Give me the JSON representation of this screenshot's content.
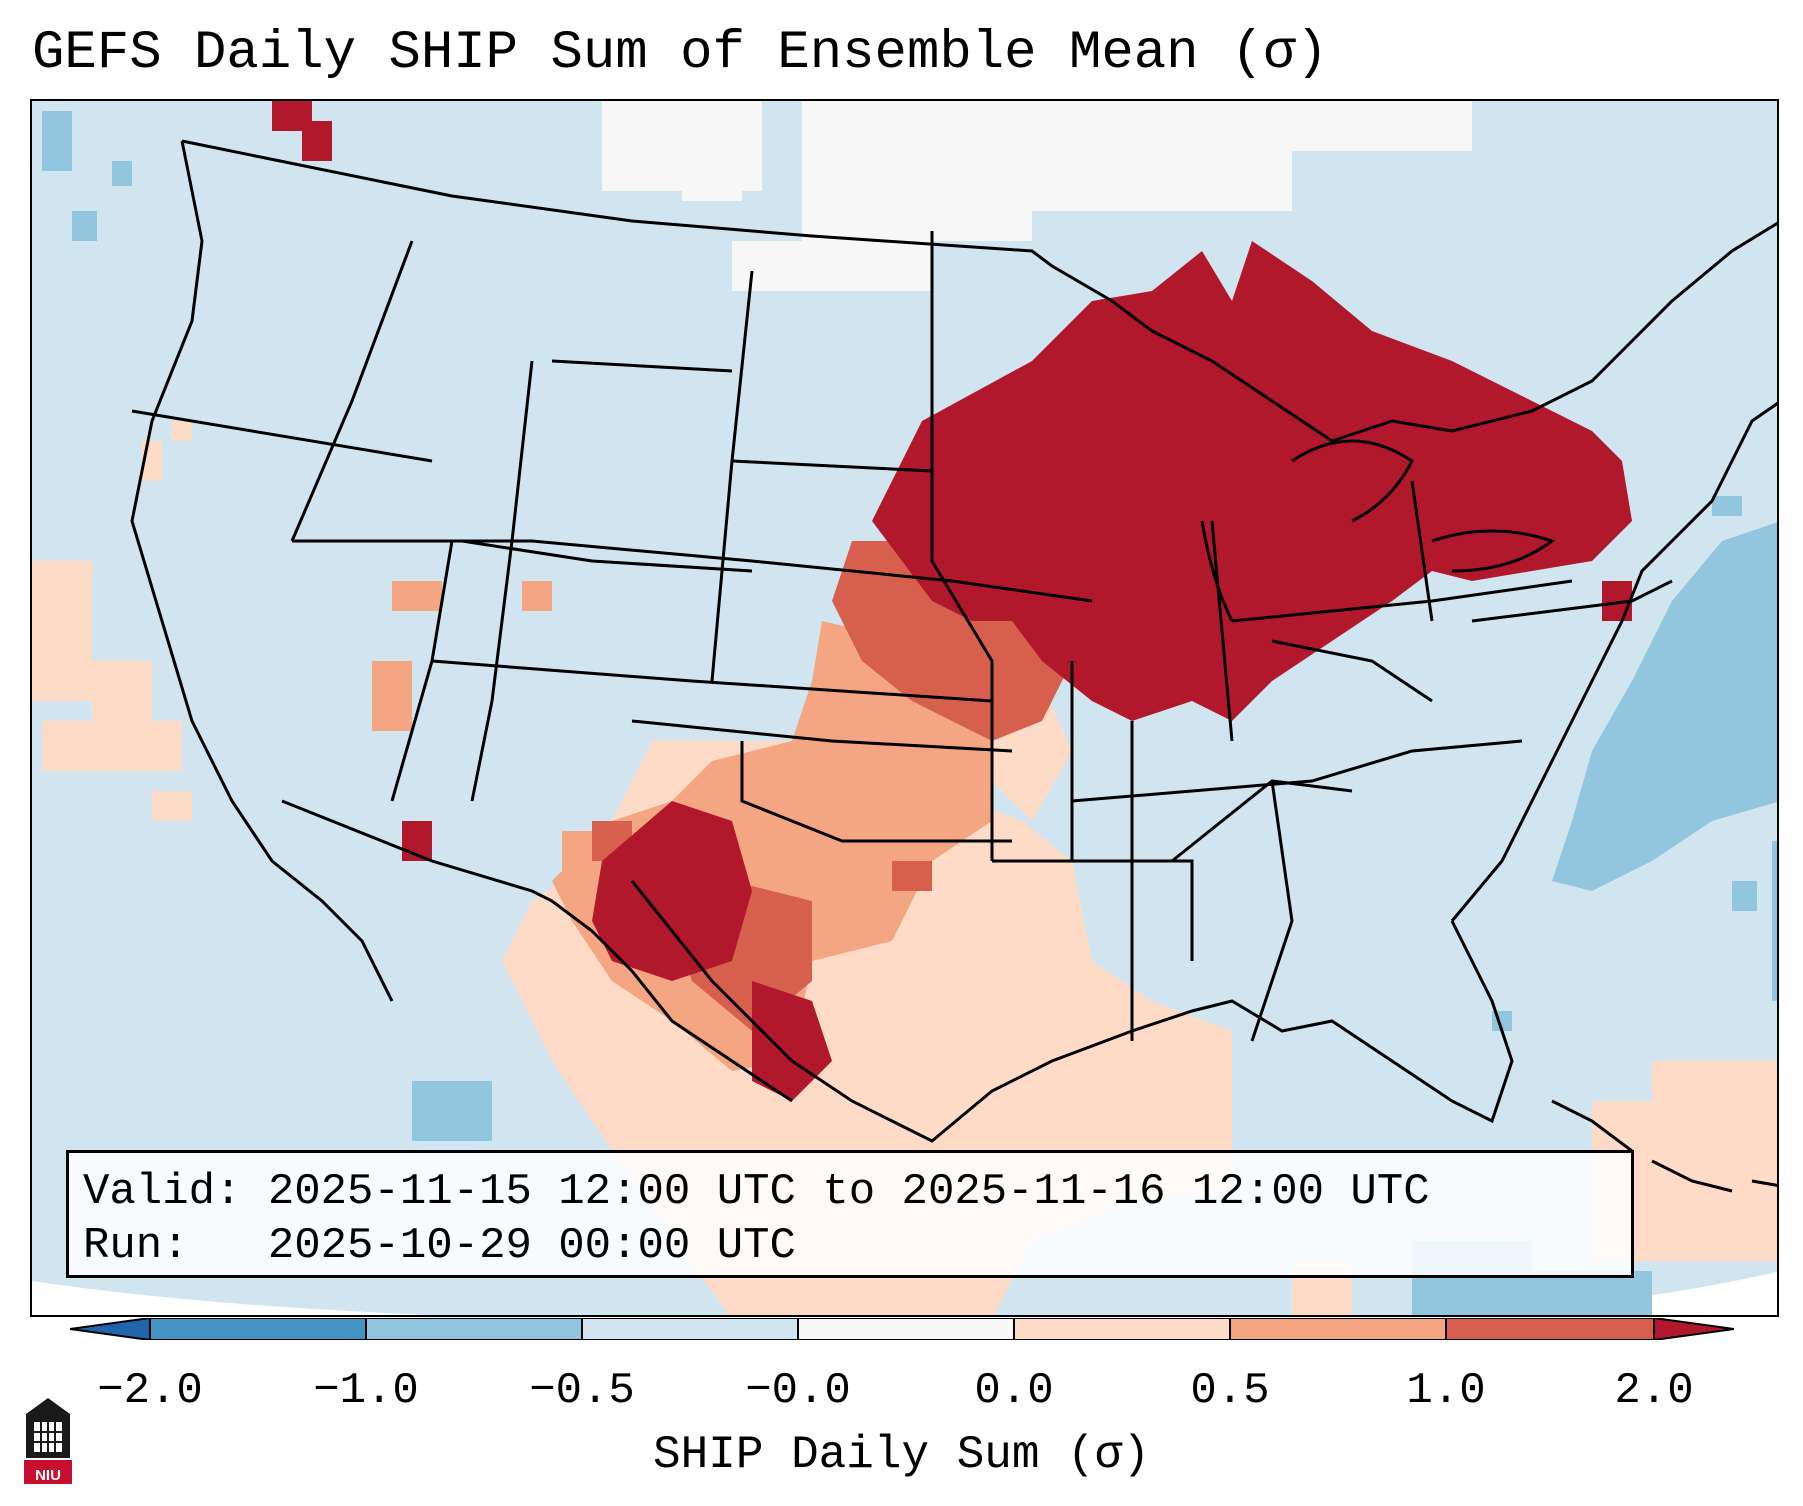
{
  "title": "GEFS Daily SHIP Sum of Ensemble Mean (σ)",
  "info": {
    "valid_line": "Valid: 2025-11-15 12:00 UTC to 2025-11-16 12:00 UTC",
    "run_line": "Run:   2025-10-29 00:00 UTC"
  },
  "colorbar": {
    "label": "SHIP Daily Sum (σ)",
    "ticks": [
      "−2.0",
      "−1.0",
      "−0.5",
      "−0.0",
      "0.0",
      "0.5",
      "1.0",
      "2.0"
    ],
    "bins": [
      {
        "range": "< -2.0",
        "color": "#2166ac"
      },
      {
        "range": "-2.0 to -1.0",
        "color": "#4393c3"
      },
      {
        "range": "-1.0 to -0.5",
        "color": "#92c5de"
      },
      {
        "range": "-0.5 to -0.0",
        "color": "#d1e5f0"
      },
      {
        "range": "-0.0 to 0.0",
        "color": "#f7f7f7"
      },
      {
        "range": "0.0 to 0.5",
        "color": "#fddbc7"
      },
      {
        "range": "0.5 to 1.0",
        "color": "#f4a582"
      },
      {
        "range": "1.0 to 2.0",
        "color": "#d6604d"
      },
      {
        "range": "> 2.0",
        "color": "#b2182b"
      }
    ]
  },
  "logo": {
    "text": "NIU",
    "color": "#c8102e"
  }
}
